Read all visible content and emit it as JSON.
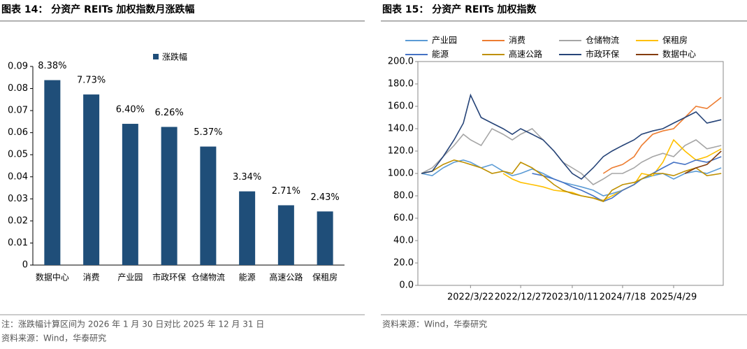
{
  "chart_data": [
    {
      "type": "bar",
      "title": "图表 14： 分资产 REITs 加权指数月涨跌幅",
      "categories": [
        "数据中心",
        "消费",
        "产业园",
        "市政环保",
        "仓储物流",
        "能源",
        "高速公路",
        "保租房"
      ],
      "series": [
        {
          "name": "涨跌幅",
          "color": "#1f4e79",
          "values": [
            0.0838,
            0.0773,
            0.064,
            0.0626,
            0.0537,
            0.0334,
            0.0271,
            0.0243
          ],
          "value_labels": [
            "8.38%",
            "7.73%",
            "6.40%",
            "6.26%",
            "5.37%",
            "3.34%",
            "2.71%",
            "2.43%"
          ]
        }
      ],
      "ylim": [
        0,
        0.09
      ],
      "yticks": [
        0,
        0.01,
        0.02,
        0.03,
        0.04,
        0.05,
        0.06,
        0.07,
        0.08,
        0.09
      ],
      "note": "注：涨跌幅计算区间为 2026 年 1 月 30 日对比 2025 年 12 月 31 日",
      "source": "资料来源：Wind，华泰研究"
    },
    {
      "type": "line",
      "title": "图表 15： 分资产 REITs 加权指数",
      "x": [
        "2021/6/21",
        "2021/8/20",
        "2021/10/20",
        "2021/12/20",
        "2022/2/10",
        "2022/3/22",
        "2022/5/20",
        "2022/7/20",
        "2022/9/20",
        "2022/11/10",
        "2022/12/27",
        "2023/3/1",
        "2023/5/1",
        "2023/7/1",
        "2023/8/20",
        "2023/10/11",
        "2023/12/1",
        "2024/2/5",
        "2024/4/1",
        "2024/5/20",
        "2024/7/18",
        "2024/9/20",
        "2024/11/1",
        "2025/1/2",
        "2025/2/28",
        "2025/4/29",
        "2025/7/1",
        "2025/9/1",
        "2025/11/1",
        "2026/1/20"
      ],
      "xlim": [
        "2021/6/1",
        "2026/1/31"
      ],
      "xticks": [
        "2022/3/22",
        "2022/12/27",
        "2023/10/11",
        "2024/7/18",
        "2025/4/29"
      ],
      "series": [
        {
          "name": "产业园",
          "color": "#5b9bd5",
          "values": [
            100,
            98,
            105,
            110,
            112,
            110,
            105,
            108,
            102,
            98,
            100,
            104,
            100,
            95,
            92,
            90,
            88,
            85,
            80,
            82,
            85,
            90,
            95,
            98,
            100,
            95,
            100,
            102,
            100,
            105
          ]
        },
        {
          "name": "消费",
          "color": "#ed7d31",
          "values": [
            null,
            null,
            null,
            null,
            null,
            null,
            null,
            null,
            null,
            null,
            null,
            null,
            null,
            null,
            null,
            null,
            null,
            null,
            100,
            105,
            108,
            115,
            125,
            135,
            138,
            140,
            150,
            160,
            158,
            168
          ]
        },
        {
          "name": "仓储物流",
          "color": "#a5a5a5",
          "values": [
            100,
            105,
            115,
            125,
            135,
            130,
            125,
            140,
            135,
            130,
            135,
            140,
            130,
            120,
            110,
            105,
            100,
            90,
            95,
            100,
            100,
            105,
            110,
            115,
            118,
            115,
            125,
            130,
            122,
            125
          ]
        },
        {
          "name": "保租房",
          "color": "#ffc000",
          "values": [
            null,
            null,
            null,
            null,
            null,
            null,
            null,
            null,
            100,
            95,
            92,
            90,
            88,
            85,
            84,
            83,
            80,
            78,
            76,
            80,
            85,
            90,
            100,
            98,
            110,
            130,
            120,
            112,
            115,
            122
          ]
        },
        {
          "name": "能源",
          "color": "#4472c4",
          "values": [
            null,
            null,
            null,
            null,
            null,
            null,
            null,
            null,
            null,
            null,
            null,
            100,
            98,
            95,
            92,
            88,
            85,
            80,
            75,
            78,
            85,
            90,
            95,
            100,
            105,
            110,
            108,
            112,
            110,
            115
          ]
        },
        {
          "name": "高速公路",
          "color": "#bf9000",
          "values": [
            100,
            102,
            108,
            112,
            110,
            108,
            105,
            100,
            102,
            100,
            110,
            105,
            98,
            90,
            85,
            82,
            80,
            78,
            75,
            85,
            90,
            92,
            95,
            100,
            100,
            98,
            102,
            105,
            98,
            100
          ]
        },
        {
          "name": "市政环保",
          "color": "#264478",
          "values": [
            100,
            102,
            115,
            130,
            145,
            170,
            150,
            145,
            140,
            135,
            140,
            135,
            130,
            120,
            110,
            100,
            95,
            105,
            115,
            120,
            125,
            130,
            135,
            138,
            140,
            145,
            150,
            155,
            145,
            148
          ]
        },
        {
          "name": "数据中心",
          "color": "#843c0c",
          "values": [
            null,
            null,
            null,
            null,
            null,
            null,
            null,
            null,
            null,
            null,
            null,
            null,
            null,
            null,
            null,
            null,
            null,
            null,
            null,
            null,
            null,
            null,
            null,
            null,
            null,
            null,
            100,
            105,
            108,
            120
          ]
        }
      ],
      "ylim": [
        0,
        200
      ],
      "yticks": [
        {
          "value": 0,
          "label": "0.0"
        },
        {
          "value": 20,
          "label": "20.0"
        },
        {
          "value": 40,
          "label": "40.0"
        },
        {
          "value": 60,
          "label": "60.0"
        },
        {
          "value": 80,
          "label": "80.0"
        },
        {
          "value": 100,
          "label": "100.0"
        },
        {
          "value": 120,
          "label": "120.0"
        },
        {
          "value": 140,
          "label": "140.0"
        },
        {
          "value": 160,
          "label": "160.0"
        },
        {
          "value": 180,
          "label": "180.0"
        },
        {
          "value": 200,
          "label": "200.0"
        }
      ],
      "source": "资料来源：Wind，华泰研究"
    }
  ]
}
